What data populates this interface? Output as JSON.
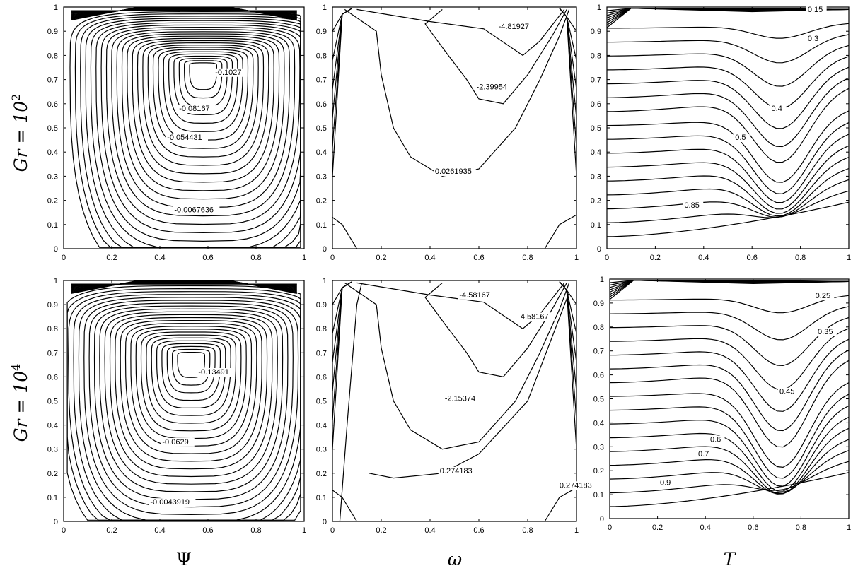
{
  "figure": {
    "row_labels": [
      {
        "base": "Gr = 10",
        "sup": "2"
      },
      {
        "base": "Gr = 10",
        "sup": "4"
      }
    ],
    "col_labels": [
      "Ψ",
      "ω",
      "T"
    ]
  },
  "chart_data": [
    {
      "type": "contour",
      "field": "Ψ",
      "row": "Gr = 10^2",
      "xlim": [
        0,
        1
      ],
      "ylim": [
        0,
        1
      ],
      "xticks": [
        "0",
        "0.2",
        "0.4",
        "0.6",
        "0.8",
        "1"
      ],
      "yticks": [
        "0",
        "0.1",
        "0.2",
        "0.3",
        "0.4",
        "0.5",
        "0.6",
        "0.7",
        "0.8",
        "0.9",
        "1"
      ],
      "contours": [
        {
          "label": "-0.1027",
          "x": 0.63,
          "y": 0.72
        },
        {
          "label": "-0.08167",
          "x": 0.48,
          "y": 0.57
        },
        {
          "label": "-0.054431",
          "x": 0.43,
          "y": 0.45
        },
        {
          "label": "-0.0067636",
          "x": 0.46,
          "y": 0.15
        }
      ],
      "vortex_center": [
        0.58,
        0.75
      ]
    },
    {
      "type": "contour",
      "field": "ω",
      "row": "Gr = 10^2",
      "xlim": [
        0,
        1
      ],
      "ylim": [
        0,
        1
      ],
      "xticks": [
        "0",
        "0.2",
        "0.4",
        "0.6",
        "0.8",
        "1"
      ],
      "yticks": [
        "0",
        "0.1",
        "0.2",
        "0.3",
        "0.4",
        "0.5",
        "0.6",
        "0.7",
        "0.8",
        "0.9",
        "1"
      ],
      "contours": [
        {
          "label": "-4.81927",
          "x": 0.68,
          "y": 0.91
        },
        {
          "label": "-2.39954",
          "x": 0.59,
          "y": 0.66
        },
        {
          "label": "0.0261935",
          "x": 0.42,
          "y": 0.31
        }
      ]
    },
    {
      "type": "contour",
      "field": "T",
      "row": "Gr = 10^2",
      "xlim": [
        0,
        1
      ],
      "ylim": [
        0,
        1
      ],
      "xticks": [
        "0",
        "0.2",
        "0.4",
        "0.6",
        "0.8",
        "1"
      ],
      "yticks": [
        "0",
        "0.1",
        "0.2",
        "0.3",
        "0.4",
        "0.5",
        "0.6",
        "0.7",
        "0.8",
        "0.9",
        "1"
      ],
      "contours": [
        {
          "label": "0.15",
          "x": 0.83,
          "y": 0.98
        },
        {
          "label": "0.3",
          "x": 0.83,
          "y": 0.86
        },
        {
          "label": "0.4",
          "x": 0.68,
          "y": 0.57
        },
        {
          "label": "0.5",
          "x": 0.53,
          "y": 0.45
        },
        {
          "label": "0.85",
          "x": 0.32,
          "y": 0.17
        }
      ]
    },
    {
      "type": "contour",
      "field": "Ψ",
      "row": "Gr = 10^4",
      "xlim": [
        0,
        1
      ],
      "ylim": [
        0,
        1
      ],
      "xticks": [
        "0",
        "0.2",
        "0.4",
        "0.6",
        "0.8",
        "1"
      ],
      "yticks": [
        "0",
        "0.1",
        "0.2",
        "0.3",
        "0.4",
        "0.5",
        "0.6",
        "0.7",
        "0.8",
        "0.9",
        "1"
      ],
      "contours": [
        {
          "label": "-0.13491",
          "x": 0.56,
          "y": 0.61
        },
        {
          "label": "-0.0629",
          "x": 0.41,
          "y": 0.32
        },
        {
          "label": "-0.0043919",
          "x": 0.36,
          "y": 0.07
        }
      ],
      "vortex_center": [
        0.53,
        0.68
      ]
    },
    {
      "type": "contour",
      "field": "ω",
      "row": "Gr = 10^4",
      "xlim": [
        0,
        1
      ],
      "ylim": [
        0,
        1
      ],
      "xticks": [
        "0",
        "0.2",
        "0.4",
        "0.6",
        "0.8",
        "1"
      ],
      "yticks": [
        "0",
        "0.1",
        "0.2",
        "0.3",
        "0.4",
        "0.5",
        "0.6",
        "0.7",
        "0.8",
        "0.9",
        "1"
      ],
      "contours": [
        {
          "label": "-4.58167",
          "x": 0.52,
          "y": 0.93
        },
        {
          "label": "-4.58167",
          "x": 0.76,
          "y": 0.84
        },
        {
          "label": "-2.15374",
          "x": 0.46,
          "y": 0.5
        },
        {
          "label": "0.274183",
          "x": 0.44,
          "y": 0.2
        },
        {
          "label": "0.274183",
          "x": 0.93,
          "y": 0.14
        }
      ]
    },
    {
      "type": "contour",
      "field": "T",
      "row": "Gr = 10^4",
      "xlim": [
        0,
        1
      ],
      "ylim": [
        0,
        1
      ],
      "xticks": [
        "0",
        "0.2",
        "0.4",
        "0.6",
        "0.8",
        "1"
      ],
      "yticks": [
        "0",
        "0.1",
        "0.2",
        "0.3",
        "0.4",
        "0.5",
        "0.6",
        "0.7",
        "0.8",
        "0.9",
        "1"
      ],
      "contours": [
        {
          "label": "0.25",
          "x": 0.86,
          "y": 0.92
        },
        {
          "label": "0.35",
          "x": 0.87,
          "y": 0.77
        },
        {
          "label": "0.45",
          "x": 0.71,
          "y": 0.52
        },
        {
          "label": "0.6",
          "x": 0.42,
          "y": 0.32
        },
        {
          "label": "0.7",
          "x": 0.37,
          "y": 0.26
        },
        {
          "label": "0.9",
          "x": 0.21,
          "y": 0.14
        }
      ]
    }
  ]
}
